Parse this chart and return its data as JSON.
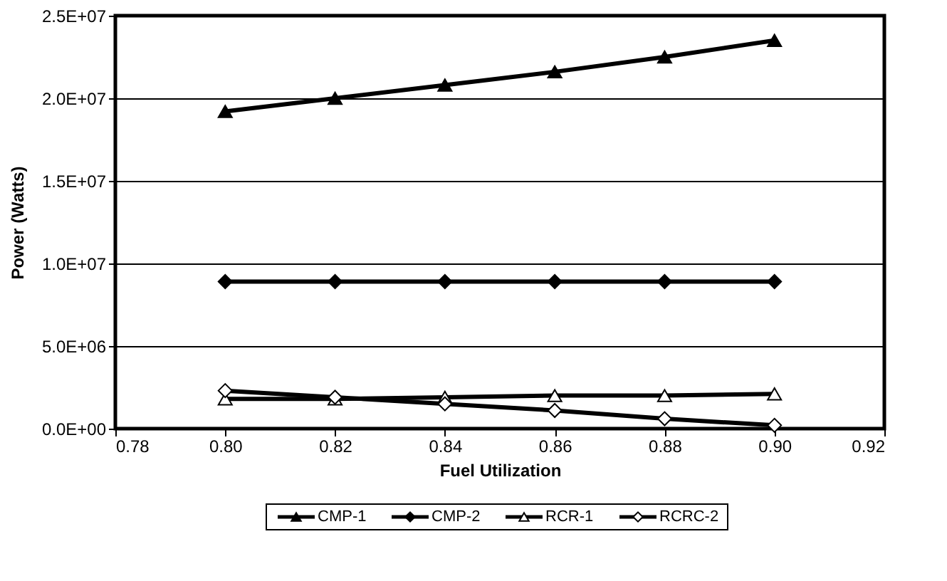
{
  "chart_data": {
    "type": "line",
    "xlabel": "Fuel Utilization",
    "ylabel": "Power (Watts)",
    "x": [
      0.8,
      0.82,
      0.84,
      0.86,
      0.88,
      0.9
    ],
    "series": [
      {
        "name": "CMP-1",
        "color": "#000000",
        "marker": "triangle",
        "colors": [
          "#000000",
          "#000000",
          "#000000",
          "#000000",
          "#000000",
          "#000000"
        ],
        "values": [
          19200000,
          20000000,
          20800000,
          21600000,
          22500000,
          23500000
        ]
      },
      {
        "name": "CMP-2",
        "color": "#000000",
        "marker": "diamond",
        "colors": [
          "#000000",
          "#000000",
          "#000000",
          "#000000",
          "#000000",
          "#000000"
        ],
        "values": [
          8900000,
          8900000,
          8900000,
          8900000,
          8900000,
          8900000
        ]
      },
      {
        "name": "RCR-1",
        "color": "#000000",
        "marker": "triangle",
        "colors": [
          "#ffffff",
          "#ffffff",
          "#ffffff",
          "#ffffff",
          "#ffffff",
          "#ffffff"
        ],
        "values": [
          1800000,
          1800000,
          1900000,
          2000000,
          2000000,
          2100000
        ]
      },
      {
        "name": "RCRC-2",
        "color": "#000000",
        "marker": "diamond",
        "colors": [
          "#ffffff",
          "#ffffff",
          "#ffffff",
          "#ffffff",
          "#ffffff",
          "#ffffff"
        ],
        "values": [
          2300000,
          1900000,
          1500000,
          1100000,
          600000,
          200000
        ]
      }
    ],
    "xlim": [
      0.78,
      0.92
    ],
    "xticks": [
      {
        "value": 0.78,
        "label": "0.78"
      },
      {
        "value": 0.8,
        "label": "0.80"
      },
      {
        "value": 0.82,
        "label": "0.82"
      },
      {
        "value": 0.84,
        "label": "0.84"
      },
      {
        "value": 0.86,
        "label": "0.86"
      },
      {
        "value": 0.88,
        "label": "0.88"
      },
      {
        "value": 0.9,
        "label": "0.90"
      },
      {
        "value": 0.92,
        "label": "0.92"
      }
    ],
    "ylim": [
      0,
      25000000
    ],
    "yticks": [
      {
        "value": 0,
        "label": "0.0E+00"
      },
      {
        "value": 5000000,
        "label": "5.0E+06"
      },
      {
        "value": 10000000,
        "label": "1.0E+07"
      },
      {
        "value": 15000000,
        "label": "1.5E+07"
      },
      {
        "value": 20000000,
        "label": "2.0E+07"
      },
      {
        "value": 25000000,
        "label": "2.5E+07"
      }
    ],
    "grid": "y",
    "legend": "bottom",
    "line_style": "solid"
  }
}
